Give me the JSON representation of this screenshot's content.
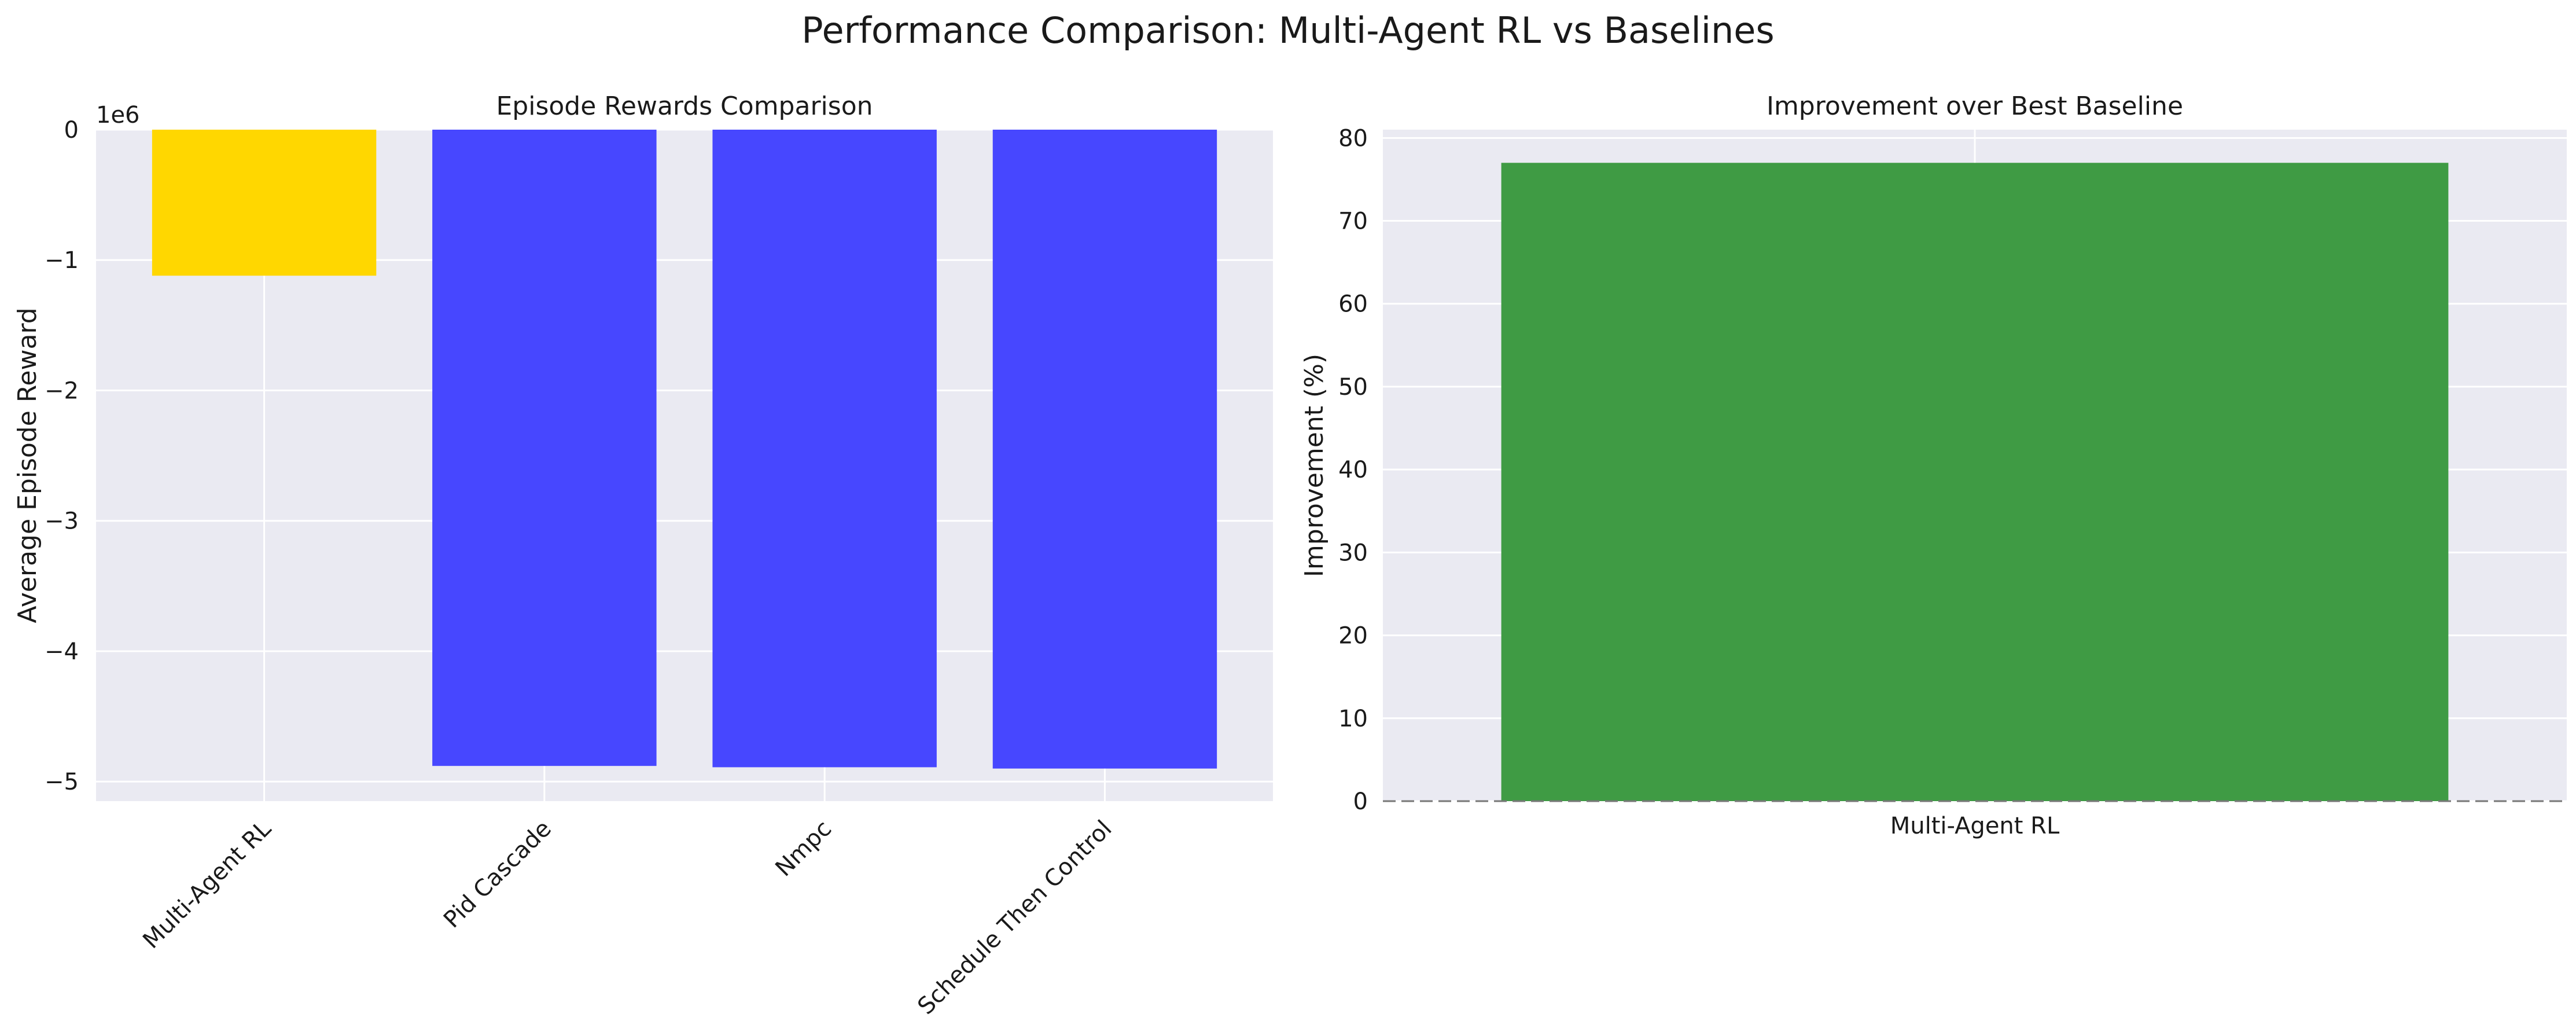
{
  "figure": {
    "title": "Performance Comparison: Multi-Agent RL vs Baselines"
  },
  "chart_data": [
    {
      "type": "bar",
      "title": "Episode Rewards Comparison",
      "xlabel": "",
      "ylabel": "Average Episode Reward",
      "y_multiplier_label": "1e6",
      "categories": [
        "Multi-Agent RL",
        "Pid Cascade",
        "Nmpc",
        "Schedule Then Control"
      ],
      "values": [
        -1120000,
        -4880000,
        -4890000,
        -4900000
      ],
      "colors": [
        "#FFD700",
        "#4747FF",
        "#4747FF",
        "#4747FF"
      ],
      "ylim": [
        -5150000,
        0
      ],
      "yticks": [
        0,
        -1000000,
        -2000000,
        -3000000,
        -4000000,
        -5000000
      ],
      "ytick_labels": [
        "0",
        "−1",
        "−2",
        "−3",
        "−4",
        "−5"
      ],
      "grid": true,
      "x_tick_rotation": "45"
    },
    {
      "type": "bar",
      "title": "Improvement over Best Baseline",
      "xlabel": "",
      "ylabel": "Improvement (%)",
      "categories": [
        "Multi-Agent RL"
      ],
      "values": [
        77
      ],
      "colors": [
        "#3F9B44"
      ],
      "ylim": [
        0,
        81
      ],
      "yticks": [
        0,
        10,
        20,
        30,
        40,
        50,
        60,
        70,
        80
      ],
      "ytick_labels": [
        "0",
        "10",
        "20",
        "30",
        "40",
        "50",
        "60",
        "70",
        "80"
      ],
      "reference_line": 0,
      "grid": true
    }
  ]
}
